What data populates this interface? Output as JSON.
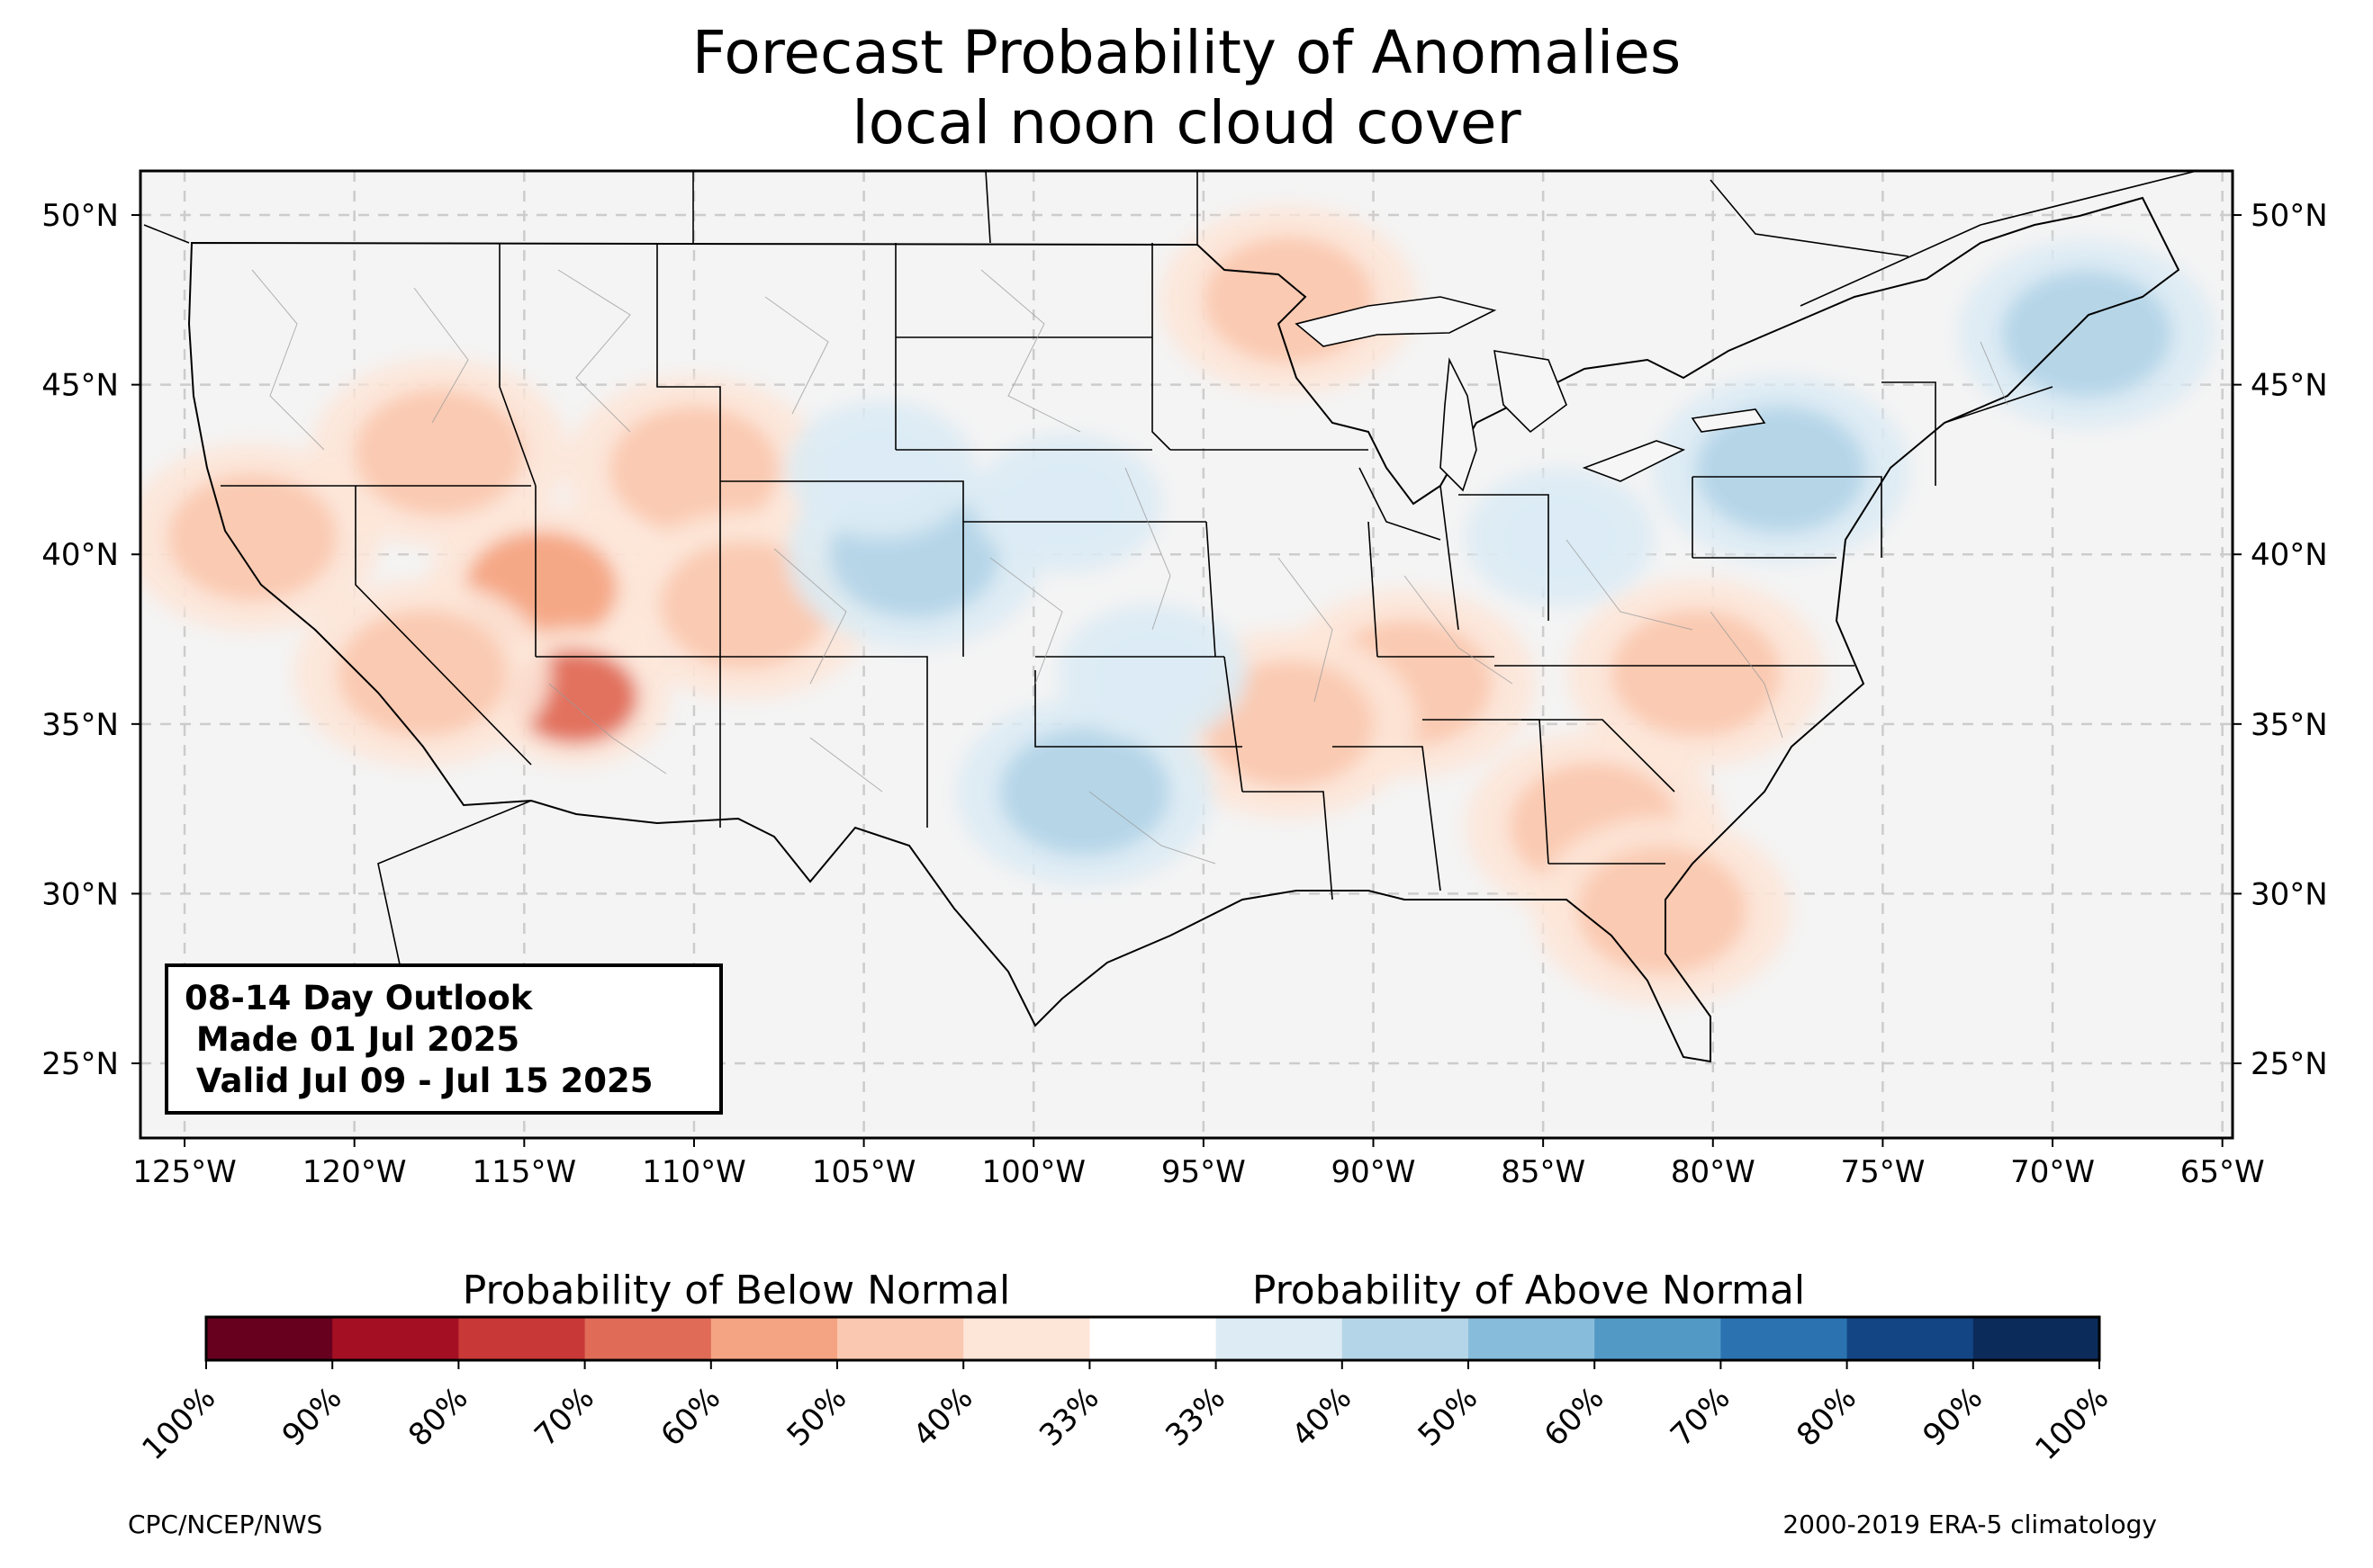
{
  "title": {
    "line1": "Forecast Probability of Anomalies",
    "line2": "local noon cloud cover"
  },
  "map": {
    "lon_ticks": [
      "125°W",
      "120°W",
      "115°W",
      "110°W",
      "105°W",
      "100°W",
      "95°W",
      "90°W",
      "85°W",
      "80°W",
      "75°W",
      "70°W",
      "65°W"
    ],
    "lat_ticks": [
      "50°N",
      "45°N",
      "40°N",
      "35°N",
      "30°N",
      "25°N"
    ],
    "extent": {
      "lon": [
        -126.3,
        -64.7
      ],
      "lat": [
        22.8,
        51.3
      ]
    },
    "gridlines": true,
    "colors": {
      "land": "#f4f4f4",
      "border": "#000000",
      "county": "#9a9a9a",
      "grid": "#cccccc"
    }
  },
  "outlook_box": {
    "line1": "08-14 Day Outlook",
    "line2": " Made 01 Jul 2025",
    "line3": " Valid Jul 09 - Jul 15 2025"
  },
  "colorbar": {
    "below_label": "Probability of Below Normal",
    "above_label": "Probability of Above Normal",
    "tick_labels": [
      "100%",
      "90%",
      "80%",
      "70%",
      "60%",
      "50%",
      "40%",
      "33%",
      "33%",
      "40%",
      "50%",
      "60%",
      "70%",
      "80%",
      "90%",
      "100%"
    ],
    "colors": [
      "#67001f",
      "#a50f24",
      "#c83837",
      "#e06b57",
      "#f4a482",
      "#fac8b0",
      "#fde5d8",
      "#ffffff",
      "#dcebf4",
      "#b4d5e7",
      "#87bcda",
      "#5299c6",
      "#2b72b0",
      "#134584",
      "#0b2b5b"
    ]
  },
  "anomalies": [
    {
      "category": "below",
      "level": "50%",
      "lon": -114.5,
      "lat": 39.0
    },
    {
      "category": "below",
      "level": "60%",
      "lon": -113.5,
      "lat": 35.8
    },
    {
      "category": "below",
      "level": "40%",
      "lon": -117.5,
      "lat": 43.0
    },
    {
      "category": "below",
      "level": "40%",
      "lon": -110.0,
      "lat": 42.5
    },
    {
      "category": "below",
      "level": "40%",
      "lon": -118.0,
      "lat": 36.5
    },
    {
      "category": "below",
      "level": "40%",
      "lon": -123.0,
      "lat": 40.5
    },
    {
      "category": "below",
      "level": "40%",
      "lon": -108.5,
      "lat": 38.5
    },
    {
      "category": "below",
      "level": "40%",
      "lon": -89.0,
      "lat": 36.2
    },
    {
      "category": "below",
      "level": "40%",
      "lon": -80.5,
      "lat": 36.5
    },
    {
      "category": "below",
      "level": "40%",
      "lon": -83.5,
      "lat": 32.0
    },
    {
      "category": "below",
      "level": "40%",
      "lon": -92.5,
      "lat": 35.0
    },
    {
      "category": "below",
      "level": "40%",
      "lon": -92.5,
      "lat": 47.5
    },
    {
      "category": "below",
      "level": "40%",
      "lon": -81.5,
      "lat": 29.5
    },
    {
      "category": "above",
      "level": "40%",
      "lon": -98.5,
      "lat": 33.0
    },
    {
      "category": "above",
      "level": "40%",
      "lon": -103.5,
      "lat": 40.0
    },
    {
      "category": "above",
      "level": "33%",
      "lon": -99.0,
      "lat": 41.5
    },
    {
      "category": "above",
      "level": "33%",
      "lon": -96.5,
      "lat": 36.5
    },
    {
      "category": "above",
      "level": "33%",
      "lon": -104.5,
      "lat": 42.5
    },
    {
      "category": "above",
      "level": "40%",
      "lon": -78.0,
      "lat": 42.5
    },
    {
      "category": "above",
      "level": "40%",
      "lon": -69.0,
      "lat": 46.5
    },
    {
      "category": "above",
      "level": "33%",
      "lon": -84.5,
      "lat": 40.5
    }
  ]
}
